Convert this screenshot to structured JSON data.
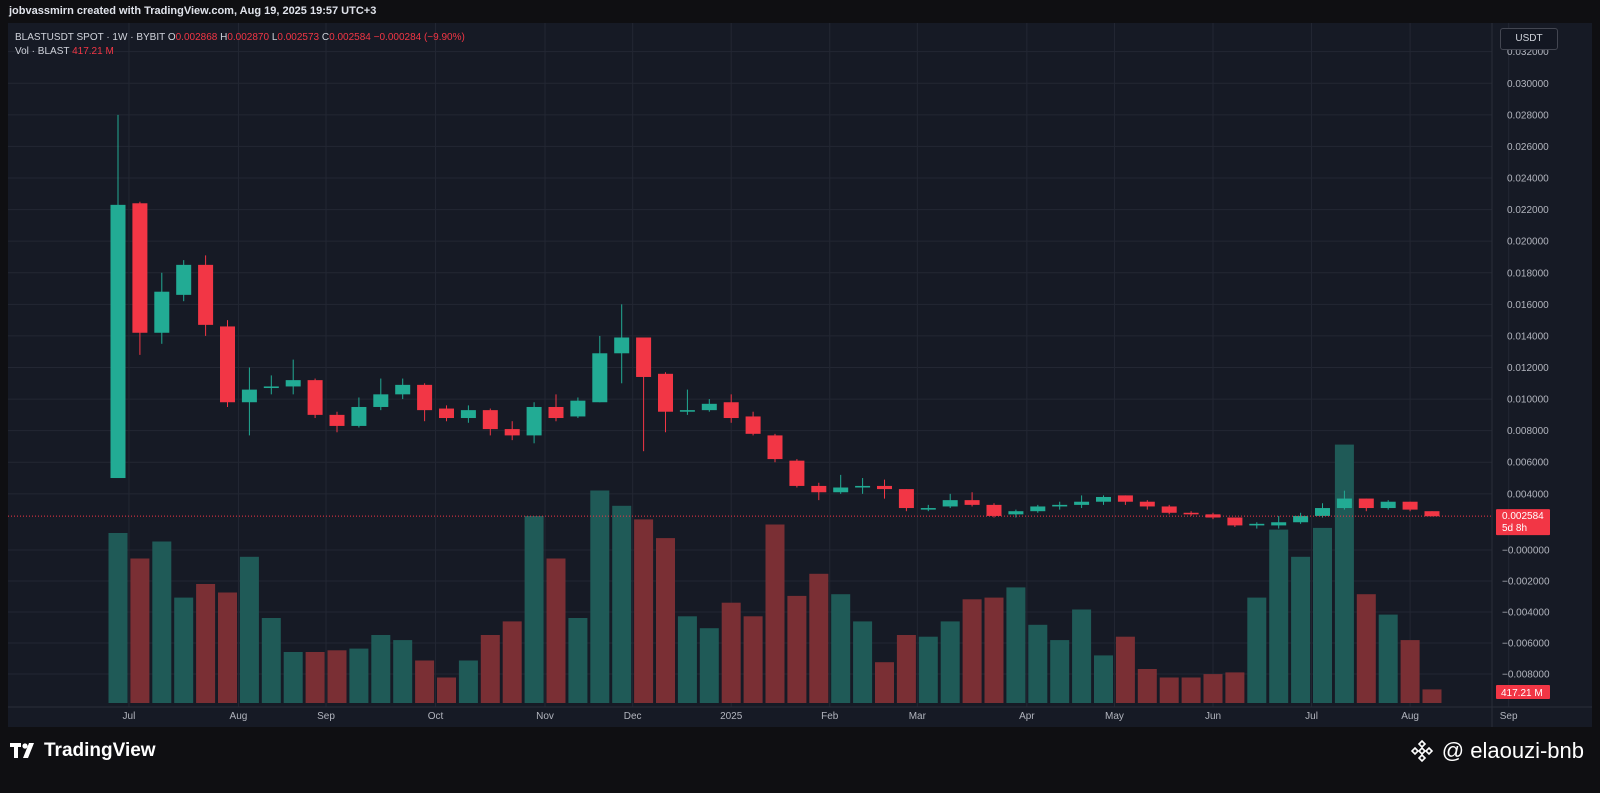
{
  "header": {
    "credit": "jobvassmirn created with TradingView.com, Aug 19, 2025 19:57 UTC+3"
  },
  "legend": {
    "symbol": "BLASTUSDT SPOT · 1W · BYBIT",
    "o_label": "O",
    "o_value": "0.002868",
    "h_label": "H",
    "h_value": "0.002870",
    "l_label": "L",
    "l_value": "0.002573",
    "c_label": "C",
    "c_value": "0.002584",
    "change": "−0.000284 (−9.90%)",
    "vol_label": "Vol · BLAST",
    "vol_value": "417.21 M"
  },
  "currency_button": "USDT",
  "price_tag": {
    "value": "0.002584",
    "countdown": "5d 8h"
  },
  "volume_tag": "417.21 M",
  "footer": {
    "brand": "TradingView",
    "watermark": "@ elaouzi-bnb"
  },
  "colors": {
    "up": "#22ab94",
    "down": "#f23645",
    "vol_up": "#1f5a57",
    "vol_down": "#7a2f34",
    "grid": "#232733",
    "background": "#161a25"
  },
  "chart_data": {
    "type": "candlestick",
    "timeframe": "1W",
    "y_axis_ticks": [
      "0.032000",
      "0.030000",
      "0.028000",
      "0.026000",
      "0.024000",
      "0.022000",
      "0.020000",
      "0.018000",
      "0.016000",
      "0.014000",
      "0.012000",
      "0.010000",
      "0.008000",
      "0.006000",
      "0.004000"
    ],
    "y_axis_lower_ticks": [
      "−0.000000",
      "−0.002000",
      "−0.004000",
      "−0.006000",
      "−0.008000"
    ],
    "ylim": [
      -0.0095,
      0.0335
    ],
    "x_axis_labels": [
      "Jul",
      "Aug",
      "Sep",
      "Oct",
      "Nov",
      "Dec",
      "2025",
      "Feb",
      "Mar",
      "Apr",
      "May",
      "Jun",
      "Jul",
      "Aug",
      "Sep"
    ],
    "x_axis_label_index": [
      0.5,
      5.5,
      9.5,
      14.5,
      19.5,
      23.5,
      28,
      32.5,
      36.5,
      41.5,
      45.5,
      50,
      54.5,
      59,
      63.5
    ],
    "last_price": 0.002584,
    "candles": [
      {
        "o": 0.005,
        "h": 0.028,
        "l": 0.005,
        "c": 0.0223,
        "v": 1.0
      },
      {
        "o": 0.0224,
        "h": 0.0225,
        "l": 0.0128,
        "c": 0.0142,
        "v": 0.85
      },
      {
        "o": 0.0142,
        "h": 0.018,
        "l": 0.0135,
        "c": 0.0168,
        "v": 0.95
      },
      {
        "o": 0.0166,
        "h": 0.0188,
        "l": 0.0162,
        "c": 0.0185,
        "v": 0.62
      },
      {
        "o": 0.0185,
        "h": 0.0191,
        "l": 0.014,
        "c": 0.0147,
        "v": 0.7
      },
      {
        "o": 0.0146,
        "h": 0.015,
        "l": 0.0095,
        "c": 0.0098,
        "v": 0.65
      },
      {
        "o": 0.0098,
        "h": 0.012,
        "l": 0.0077,
        "c": 0.0106,
        "v": 0.86
      },
      {
        "o": 0.0107,
        "h": 0.0115,
        "l": 0.0103,
        "c": 0.0108,
        "v": 0.5
      },
      {
        "o": 0.0108,
        "h": 0.0125,
        "l": 0.0103,
        "c": 0.0112,
        "v": 0.3
      },
      {
        "o": 0.0112,
        "h": 0.0113,
        "l": 0.0088,
        "c": 0.009,
        "v": 0.3
      },
      {
        "o": 0.009,
        "h": 0.0092,
        "l": 0.0079,
        "c": 0.0083,
        "v": 0.31
      },
      {
        "o": 0.0083,
        "h": 0.0101,
        "l": 0.0082,
        "c": 0.0095,
        "v": 0.32
      },
      {
        "o": 0.0095,
        "h": 0.0113,
        "l": 0.0093,
        "c": 0.0103,
        "v": 0.4
      },
      {
        "o": 0.0103,
        "h": 0.0113,
        "l": 0.01,
        "c": 0.0109,
        "v": 0.37
      },
      {
        "o": 0.0109,
        "h": 0.011,
        "l": 0.0086,
        "c": 0.0093,
        "v": 0.25
      },
      {
        "o": 0.0094,
        "h": 0.0096,
        "l": 0.0086,
        "c": 0.0088,
        "v": 0.15
      },
      {
        "o": 0.0088,
        "h": 0.0096,
        "l": 0.0085,
        "c": 0.0093,
        "v": 0.25
      },
      {
        "o": 0.0093,
        "h": 0.0094,
        "l": 0.0077,
        "c": 0.0081,
        "v": 0.4
      },
      {
        "o": 0.0081,
        "h": 0.0086,
        "l": 0.0074,
        "c": 0.0077,
        "v": 0.48
      },
      {
        "o": 0.0077,
        "h": 0.0098,
        "l": 0.0072,
        "c": 0.0095,
        "v": 1.1
      },
      {
        "o": 0.0095,
        "h": 0.0103,
        "l": 0.0086,
        "c": 0.0088,
        "v": 0.85
      },
      {
        "o": 0.0089,
        "h": 0.0101,
        "l": 0.0088,
        "c": 0.0099,
        "v": 0.5
      },
      {
        "o": 0.0098,
        "h": 0.014,
        "l": 0.0098,
        "c": 0.0129,
        "v": 1.25
      },
      {
        "o": 0.0129,
        "h": 0.016,
        "l": 0.011,
        "c": 0.0139,
        "v": 1.16
      },
      {
        "o": 0.0139,
        "h": 0.0139,
        "l": 0.0067,
        "c": 0.0114,
        "v": 1.08
      },
      {
        "o": 0.0116,
        "h": 0.0117,
        "l": 0.0079,
        "c": 0.0092,
        "v": 0.97
      },
      {
        "o": 0.0092,
        "h": 0.0106,
        "l": 0.009,
        "c": 0.0093,
        "v": 0.51
      },
      {
        "o": 0.0093,
        "h": 0.01,
        "l": 0.0092,
        "c": 0.0097,
        "v": 0.44
      },
      {
        "o": 0.0098,
        "h": 0.0103,
        "l": 0.0085,
        "c": 0.0088,
        "v": 0.59
      },
      {
        "o": 0.0089,
        "h": 0.0092,
        "l": 0.0077,
        "c": 0.0078,
        "v": 0.51
      },
      {
        "o": 0.0077,
        "h": 0.0078,
        "l": 0.006,
        "c": 0.0062,
        "v": 1.05
      },
      {
        "o": 0.0061,
        "h": 0.0062,
        "l": 0.0044,
        "c": 0.0045,
        "v": 0.63
      },
      {
        "o": 0.0045,
        "h": 0.0047,
        "l": 0.0036,
        "c": 0.0041,
        "v": 0.76
      },
      {
        "o": 0.0041,
        "h": 0.0052,
        "l": 0.004,
        "c": 0.0044,
        "v": 0.64
      },
      {
        "o": 0.0044,
        "h": 0.005,
        "l": 0.004,
        "c": 0.0045,
        "v": 0.48
      },
      {
        "o": 0.0045,
        "h": 0.0049,
        "l": 0.0037,
        "c": 0.0043,
        "v": 0.24
      },
      {
        "o": 0.0043,
        "h": 0.0043,
        "l": 0.0029,
        "c": 0.0031,
        "v": 0.4
      },
      {
        "o": 0.003,
        "h": 0.0033,
        "l": 0.0029,
        "c": 0.0031,
        "v": 0.39
      },
      {
        "o": 0.0032,
        "h": 0.004,
        "l": 0.0031,
        "c": 0.0036,
        "v": 0.48
      },
      {
        "o": 0.0036,
        "h": 0.0041,
        "l": 0.0032,
        "c": 0.0033,
        "v": 0.61
      },
      {
        "o": 0.0033,
        "h": 0.0034,
        "l": 0.0025,
        "c": 0.0026,
        "v": 0.62
      },
      {
        "o": 0.0027,
        "h": 0.003,
        "l": 0.0025,
        "c": 0.0029,
        "v": 0.68
      },
      {
        "o": 0.0029,
        "h": 0.0033,
        "l": 0.0028,
        "c": 0.0032,
        "v": 0.46
      },
      {
        "o": 0.0032,
        "h": 0.0035,
        "l": 0.003,
        "c": 0.0033,
        "v": 0.37
      },
      {
        "o": 0.0033,
        "h": 0.0039,
        "l": 0.0031,
        "c": 0.0035,
        "v": 0.55
      },
      {
        "o": 0.0035,
        "h": 0.0039,
        "l": 0.0033,
        "c": 0.0038,
        "v": 0.28
      },
      {
        "o": 0.0039,
        "h": 0.0039,
        "l": 0.0033,
        "c": 0.0035,
        "v": 0.39
      },
      {
        "o": 0.0035,
        "h": 0.0036,
        "l": 0.003,
        "c": 0.0032,
        "v": 0.2
      },
      {
        "o": 0.0032,
        "h": 0.0033,
        "l": 0.0027,
        "c": 0.0028,
        "v": 0.15
      },
      {
        "o": 0.0028,
        "h": 0.0029,
        "l": 0.0026,
        "c": 0.0027,
        "v": 0.15
      },
      {
        "o": 0.0027,
        "h": 0.0028,
        "l": 0.0024,
        "c": 0.0025,
        "v": 0.17
      },
      {
        "o": 0.0025,
        "h": 0.0025,
        "l": 0.0019,
        "c": 0.002,
        "v": 0.18
      },
      {
        "o": 0.002,
        "h": 0.0022,
        "l": 0.0018,
        "c": 0.0021,
        "v": 0.62
      },
      {
        "o": 0.002,
        "h": 0.0026,
        "l": 0.0018,
        "c": 0.0022,
        "v": 1.02
      },
      {
        "o": 0.0022,
        "h": 0.0028,
        "l": 0.0021,
        "c": 0.0026,
        "v": 0.86
      },
      {
        "o": 0.0026,
        "h": 0.0034,
        "l": 0.0025,
        "c": 0.0031,
        "v": 1.03
      },
      {
        "o": 0.0031,
        "h": 0.0042,
        "l": 0.003,
        "c": 0.0037,
        "v": 1.52
      },
      {
        "o": 0.0037,
        "h": 0.0037,
        "l": 0.0029,
        "c": 0.0031,
        "v": 0.64
      },
      {
        "o": 0.0031,
        "h": 0.0036,
        "l": 0.003,
        "c": 0.0035,
        "v": 0.52
      },
      {
        "o": 0.0035,
        "h": 0.0035,
        "l": 0.0029,
        "c": 0.003,
        "v": 0.37
      },
      {
        "o": 0.0029,
        "h": 0.0029,
        "l": 0.00257,
        "c": 0.00258,
        "v": 0.08
      }
    ]
  }
}
